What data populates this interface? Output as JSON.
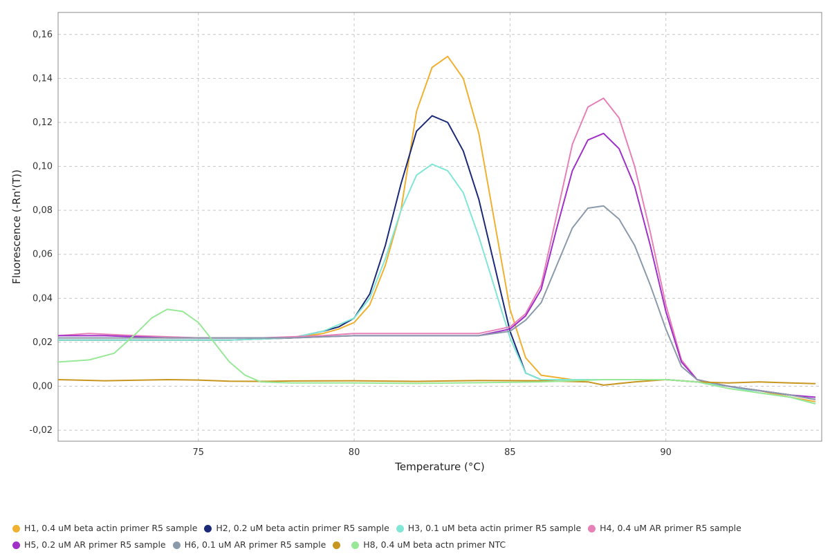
{
  "chart_data": {
    "type": "line",
    "title": "",
    "xlabel": "Temperature (°C)",
    "ylabel": "Fluorescence (-Rn'(T))",
    "xlim": [
      70.5,
      95
    ],
    "ylim": [
      -0.025,
      0.17
    ],
    "x_ticks": [
      75,
      80,
      85,
      90
    ],
    "x_tick_labels": [
      "75",
      "80",
      "85",
      "90"
    ],
    "y_ticks": [
      -0.02,
      0.0,
      0.02,
      0.04,
      0.06,
      0.08,
      0.1,
      0.12,
      0.14,
      0.16
    ],
    "y_tick_labels": [
      "-0,02",
      "0,00",
      "0,02",
      "0,04",
      "0,06",
      "0,08",
      "0,10",
      "0,12",
      "0,14",
      "0,16"
    ],
    "grid": true,
    "legend_position": "bottom",
    "series": [
      {
        "name": "H1, 0.4 uM beta actin primer R5 sample",
        "color": "#f0b030",
        "points": [
          [
            70.5,
            0.021
          ],
          [
            72,
            0.021
          ],
          [
            74,
            0.021
          ],
          [
            76,
            0.021
          ],
          [
            78,
            0.022
          ],
          [
            79,
            0.024
          ],
          [
            79.5,
            0.026
          ],
          [
            80,
            0.029
          ],
          [
            80.5,
            0.037
          ],
          [
            81,
            0.055
          ],
          [
            81.5,
            0.08
          ],
          [
            82,
            0.125
          ],
          [
            82.5,
            0.145
          ],
          [
            83,
            0.15
          ],
          [
            83.5,
            0.14
          ],
          [
            84,
            0.115
          ],
          [
            84.5,
            0.075
          ],
          [
            85,
            0.035
          ],
          [
            85.5,
            0.013
          ],
          [
            86,
            0.005
          ],
          [
            87,
            0.003
          ],
          [
            88,
            0.003
          ],
          [
            89,
            0.003
          ],
          [
            90,
            0.003
          ],
          [
            91,
            0.002
          ],
          [
            92,
            0.0
          ],
          [
            93,
            -0.002
          ],
          [
            94,
            -0.005
          ],
          [
            94.8,
            -0.007
          ]
        ]
      },
      {
        "name": "H2, 0.2 uM beta actin primer R5 sample",
        "color": "#1a2a78",
        "points": [
          [
            70.5,
            0.021
          ],
          [
            72,
            0.021
          ],
          [
            74,
            0.021
          ],
          [
            76,
            0.021
          ],
          [
            78,
            0.022
          ],
          [
            79,
            0.025
          ],
          [
            79.5,
            0.027
          ],
          [
            80,
            0.031
          ],
          [
            80.5,
            0.042
          ],
          [
            81,
            0.064
          ],
          [
            81.5,
            0.092
          ],
          [
            82,
            0.116
          ],
          [
            82.5,
            0.123
          ],
          [
            83,
            0.12
          ],
          [
            83.5,
            0.107
          ],
          [
            84,
            0.085
          ],
          [
            84.5,
            0.055
          ],
          [
            85,
            0.025
          ],
          [
            85.5,
            0.006
          ],
          [
            86,
            0.003
          ],
          [
            87,
            0.003
          ],
          [
            88,
            0.003
          ],
          [
            89,
            0.003
          ],
          [
            90,
            0.003
          ],
          [
            91,
            0.002
          ],
          [
            92,
            0.0
          ],
          [
            93,
            -0.002
          ],
          [
            94,
            -0.004
          ],
          [
            94.8,
            -0.006
          ]
        ]
      },
      {
        "name": "H3, 0.1 uM beta actin primer R5 sample",
        "color": "#80e6d6",
        "points": [
          [
            70.5,
            0.021
          ],
          [
            72,
            0.021
          ],
          [
            74,
            0.021
          ],
          [
            76,
            0.021
          ],
          [
            78,
            0.022
          ],
          [
            79,
            0.025
          ],
          [
            79.5,
            0.028
          ],
          [
            80,
            0.031
          ],
          [
            80.5,
            0.04
          ],
          [
            81,
            0.058
          ],
          [
            81.5,
            0.08
          ],
          [
            82,
            0.096
          ],
          [
            82.5,
            0.101
          ],
          [
            83,
            0.098
          ],
          [
            83.5,
            0.088
          ],
          [
            84,
            0.068
          ],
          [
            84.5,
            0.045
          ],
          [
            85,
            0.022
          ],
          [
            85.5,
            0.006
          ],
          [
            86,
            0.003
          ],
          [
            87,
            0.003
          ],
          [
            88,
            0.003
          ],
          [
            89,
            0.003
          ],
          [
            90,
            0.003
          ],
          [
            91,
            0.002
          ],
          [
            92,
            0.0
          ],
          [
            93,
            -0.003
          ],
          [
            94,
            -0.005
          ],
          [
            94.8,
            -0.008
          ]
        ]
      },
      {
        "name": "H4, 0.4 uM AR primer R5 sample",
        "color": "#e880b8",
        "points": [
          [
            70.5,
            0.023
          ],
          [
            71.5,
            0.024
          ],
          [
            73,
            0.023
          ],
          [
            75,
            0.022
          ],
          [
            77,
            0.022
          ],
          [
            79,
            0.023
          ],
          [
            80,
            0.024
          ],
          [
            82,
            0.024
          ],
          [
            84,
            0.024
          ],
          [
            85,
            0.027
          ],
          [
            85.5,
            0.033
          ],
          [
            86,
            0.046
          ],
          [
            86.5,
            0.078
          ],
          [
            87,
            0.11
          ],
          [
            87.5,
            0.127
          ],
          [
            88,
            0.131
          ],
          [
            88.5,
            0.122
          ],
          [
            89,
            0.1
          ],
          [
            89.5,
            0.07
          ],
          [
            90,
            0.037
          ],
          [
            90.5,
            0.012
          ],
          [
            91,
            0.003
          ],
          [
            92,
            0.0
          ],
          [
            93,
            -0.002
          ],
          [
            94,
            -0.004
          ],
          [
            94.8,
            -0.006
          ]
        ]
      },
      {
        "name": "H5, 0.2 uM AR primer R5 sample",
        "color": "#a030c8",
        "points": [
          [
            70.5,
            0.023
          ],
          [
            72,
            0.023
          ],
          [
            74,
            0.022
          ],
          [
            76,
            0.022
          ],
          [
            78,
            0.022
          ],
          [
            80,
            0.023
          ],
          [
            82,
            0.023
          ],
          [
            84,
            0.023
          ],
          [
            85,
            0.026
          ],
          [
            85.5,
            0.032
          ],
          [
            86,
            0.044
          ],
          [
            86.5,
            0.072
          ],
          [
            87,
            0.098
          ],
          [
            87.5,
            0.112
          ],
          [
            88,
            0.115
          ],
          [
            88.5,
            0.108
          ],
          [
            89,
            0.091
          ],
          [
            89.5,
            0.064
          ],
          [
            90,
            0.034
          ],
          [
            90.5,
            0.011
          ],
          [
            91,
            0.003
          ],
          [
            92,
            0.0
          ],
          [
            93,
            -0.002
          ],
          [
            94,
            -0.004
          ],
          [
            94.8,
            -0.005
          ]
        ]
      },
      {
        "name": "H6, 0.1 uM AR primer R5 sample",
        "color": "#8a9aaa",
        "points": [
          [
            70.5,
            0.022
          ],
          [
            72,
            0.022
          ],
          [
            74,
            0.022
          ],
          [
            76,
            0.022
          ],
          [
            78,
            0.022
          ],
          [
            80,
            0.023
          ],
          [
            82,
            0.023
          ],
          [
            84,
            0.023
          ],
          [
            85,
            0.025
          ],
          [
            85.5,
            0.03
          ],
          [
            86,
            0.038
          ],
          [
            86.5,
            0.055
          ],
          [
            87,
            0.072
          ],
          [
            87.5,
            0.081
          ],
          [
            88,
            0.082
          ],
          [
            88.5,
            0.076
          ],
          [
            89,
            0.064
          ],
          [
            89.5,
            0.046
          ],
          [
            90,
            0.026
          ],
          [
            90.5,
            0.009
          ],
          [
            91,
            0.003
          ],
          [
            92,
            0.0
          ],
          [
            93,
            -0.002
          ],
          [
            94,
            -0.004
          ],
          [
            94.8,
            -0.006
          ]
        ]
      },
      {
        "name": "",
        "color": "#c8961e",
        "points": [
          [
            70.5,
            0.003
          ],
          [
            72,
            0.0025
          ],
          [
            74,
            0.003
          ],
          [
            75,
            0.0028
          ],
          [
            76,
            0.0023
          ],
          [
            77,
            0.0022
          ],
          [
            78,
            0.0024
          ],
          [
            80,
            0.0025
          ],
          [
            82,
            0.0022
          ],
          [
            84,
            0.0026
          ],
          [
            86,
            0.0025
          ],
          [
            87.5,
            0.002
          ],
          [
            88,
            0.0005
          ],
          [
            89,
            0.002
          ],
          [
            90,
            0.003
          ],
          [
            91,
            0.002
          ],
          [
            92,
            0.0015
          ],
          [
            93,
            0.002
          ],
          [
            94,
            0.0015
          ],
          [
            94.8,
            0.0012
          ]
        ]
      },
      {
        "name": "H8, 0.4 uM beta actn primer NTC",
        "color": "#98e898",
        "points": [
          [
            70.5,
            0.011
          ],
          [
            71.5,
            0.012
          ],
          [
            72.3,
            0.015
          ],
          [
            73,
            0.024
          ],
          [
            73.5,
            0.031
          ],
          [
            74,
            0.035
          ],
          [
            74.5,
            0.034
          ],
          [
            75,
            0.029
          ],
          [
            75.5,
            0.02
          ],
          [
            76,
            0.011
          ],
          [
            76.5,
            0.005
          ],
          [
            77,
            0.002
          ],
          [
            78,
            0.0015
          ],
          [
            80,
            0.0015
          ],
          [
            82,
            0.0013
          ],
          [
            84,
            0.0016
          ],
          [
            86,
            0.002
          ],
          [
            88,
            0.003
          ],
          [
            90,
            0.003
          ],
          [
            91,
            0.002
          ],
          [
            92,
            -0.001
          ],
          [
            93,
            -0.003
          ],
          [
            94,
            -0.005
          ],
          [
            94.8,
            -0.008
          ]
        ]
      }
    ]
  }
}
